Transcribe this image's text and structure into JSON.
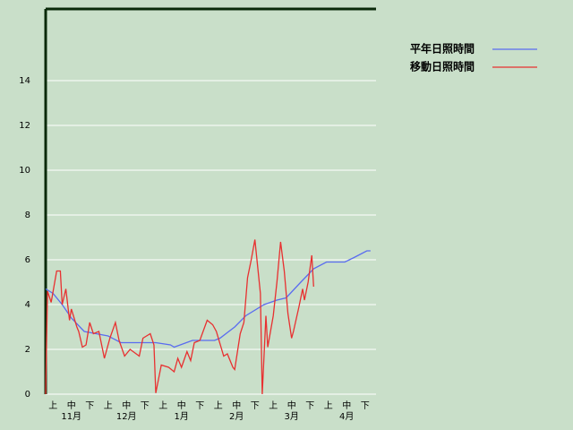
{
  "chart_data": {
    "type": "line",
    "categories": [
      "上",
      "中",
      "下",
      "上",
      "中",
      "下",
      "上",
      "中",
      "下",
      "上",
      "中",
      "下",
      "上",
      "中",
      "下",
      "上",
      "中",
      "下"
    ],
    "months": [
      "11月",
      "12月",
      "1月",
      "2月",
      "3月",
      "4月"
    ],
    "xlim": [
      0,
      180
    ],
    "ylim": [
      0,
      17.2
    ],
    "yticks": [
      0,
      2,
      4,
      6,
      8,
      10,
      12,
      14
    ],
    "grid": true,
    "legend": "top-right",
    "series": [
      {
        "name": "平年日照時間",
        "color": "#5a6cf0",
        "x": [
          0,
          4,
          9,
          14,
          21,
          34,
          41,
          60,
          68,
          70,
          80,
          92,
          95,
          103,
          109,
          119,
          126,
          131,
          139,
          146,
          153,
          163,
          168,
          175,
          177
        ],
        "values": [
          4.7,
          4.5,
          4.0,
          3.4,
          2.8,
          2.6,
          2.3,
          2.3,
          2.2,
          2.1,
          2.4,
          2.4,
          2.5,
          3.0,
          3.5,
          4.0,
          4.2,
          4.3,
          5.0,
          5.6,
          5.9,
          5.9,
          6.1,
          6.4,
          6.4
        ]
      },
      {
        "name": "移動日照時間",
        "color": "#e83030",
        "x": [
          0,
          1,
          3,
          6,
          8,
          9,
          11,
          13,
          14,
          17,
          18,
          20,
          22,
          24,
          26,
          29,
          32,
          35,
          38,
          40,
          43,
          46,
          51,
          53,
          57,
          59,
          60,
          63,
          67,
          70,
          72,
          74,
          77,
          79,
          81,
          84,
          88,
          91,
          93,
          97,
          99,
          102,
          103,
          106,
          108,
          110,
          112,
          114,
          117,
          118,
          120,
          121,
          124,
          126,
          128,
          130,
          132,
          134,
          135,
          138,
          140,
          141,
          143,
          145,
          146
        ],
        "values": [
          0,
          4.6,
          4.1,
          5.5,
          5.5,
          4.0,
          4.7,
          3.3,
          3.8,
          3.0,
          2.8,
          2.1,
          2.2,
          3.2,
          2.7,
          2.8,
          1.6,
          2.5,
          3.2,
          2.4,
          1.7,
          2.0,
          1.7,
          2.5,
          2.7,
          2.2,
          0.05,
          1.3,
          1.2,
          1.0,
          1.6,
          1.2,
          1.9,
          1.5,
          2.3,
          2.4,
          3.3,
          3.1,
          2.8,
          1.7,
          1.8,
          1.2,
          1.1,
          2.7,
          3.2,
          5.2,
          6.0,
          6.9,
          4.5,
          0,
          3.5,
          2.1,
          3.5,
          5.0,
          6.8,
          5.5,
          3.6,
          2.5,
          2.8,
          3.9,
          4.7,
          4.2,
          5.0,
          6.2,
          4.8
        ]
      }
    ]
  }
}
